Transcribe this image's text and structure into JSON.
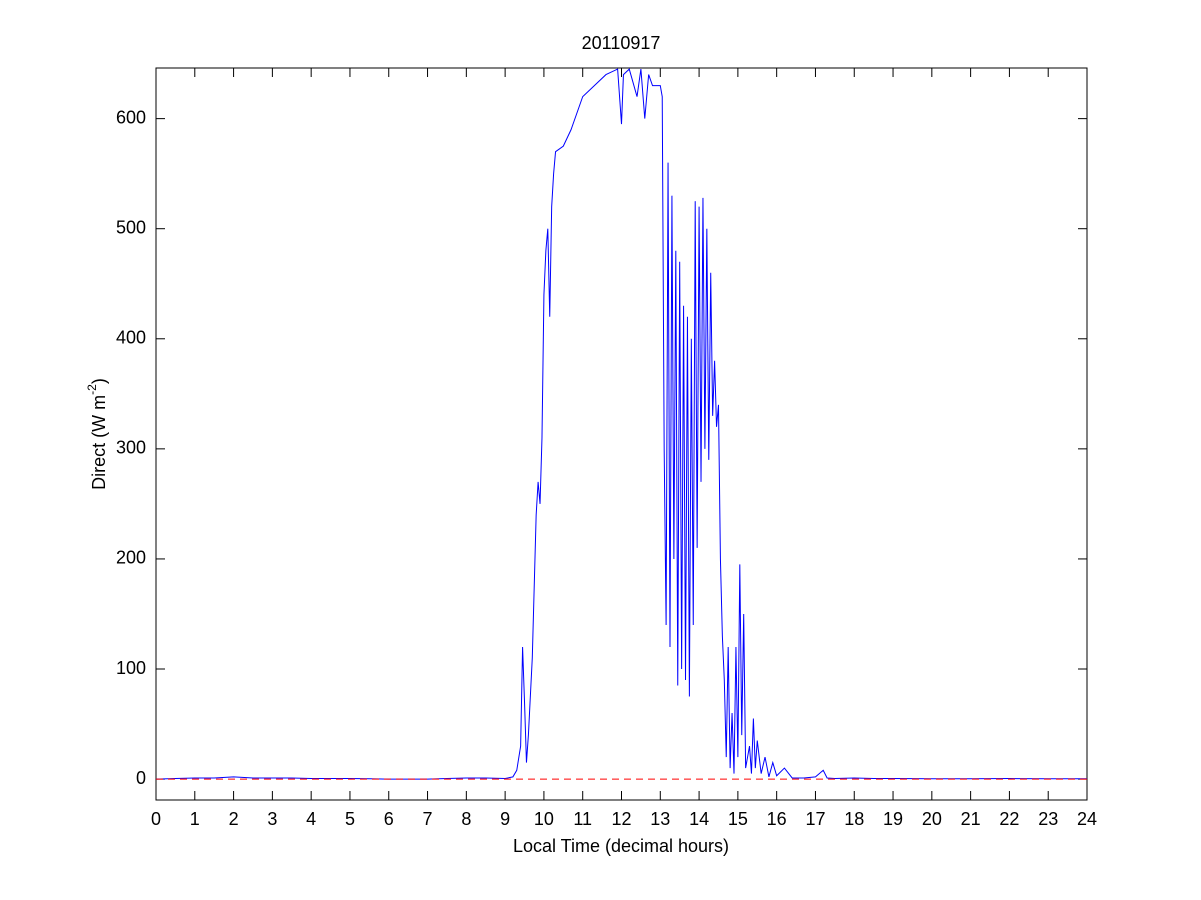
{
  "chart_data": {
    "type": "line",
    "title": "20110917",
    "xlabel": "Local Time (decimal hours)",
    "ylabel": [
      "Direct (W m",
      "-2",
      ")"
    ],
    "xlim": [
      0,
      24
    ],
    "ylim": [
      -19,
      646
    ],
    "xticks": [
      0,
      1,
      2,
      3,
      4,
      5,
      6,
      7,
      8,
      9,
      10,
      11,
      12,
      13,
      14,
      15,
      16,
      17,
      18,
      19,
      20,
      21,
      22,
      23,
      24
    ],
    "yticks": [
      0,
      100,
      200,
      300,
      400,
      500,
      600
    ],
    "series": [
      {
        "color": "#0000ff",
        "linestyle": "solid",
        "x": [
          0,
          0.5,
          1,
          1.5,
          2,
          2.5,
          3,
          3.5,
          4,
          4.5,
          5,
          5.5,
          6,
          7,
          7.5,
          8,
          8.5,
          9,
          9.2,
          9.3,
          9.4,
          9.45,
          9.5,
          9.55,
          9.6,
          9.7,
          9.8,
          9.85,
          9.9,
          9.95,
          10,
          10.05,
          10.1,
          10.15,
          10.2,
          10.25,
          10.3,
          10.5,
          10.7,
          10.9,
          11,
          11.3,
          11.6,
          11.9,
          12,
          12.05,
          12.2,
          12.4,
          12.5,
          12.6,
          12.7,
          12.8,
          13,
          13.05,
          13.1,
          13.15,
          13.2,
          13.25,
          13.3,
          13.35,
          13.4,
          13.45,
          13.5,
          13.55,
          13.6,
          13.65,
          13.7,
          13.75,
          13.8,
          13.85,
          13.9,
          13.95,
          14,
          14.05,
          14.1,
          14.15,
          14.2,
          14.25,
          14.3,
          14.35,
          14.4,
          14.45,
          14.5,
          14.55,
          14.6,
          14.65,
          14.7,
          14.75,
          14.8,
          14.85,
          14.9,
          14.95,
          15,
          15.05,
          15.1,
          15.15,
          15.2,
          15.3,
          15.35,
          15.4,
          15.45,
          15.5,
          15.6,
          15.7,
          15.8,
          15.9,
          16,
          16.2,
          16.4,
          16.7,
          17,
          17.2,
          17.3,
          17.5,
          18,
          18.5,
          19,
          20,
          21,
          22,
          23,
          24
        ],
        "values": [
          0,
          0.5,
          1,
          1,
          2,
          1,
          1,
          1,
          0.5,
          0.5,
          0.5,
          0.3,
          0,
          0,
          0.5,
          1,
          1,
          0.5,
          2,
          8,
          30,
          120,
          70,
          15,
          40,
          110,
          240,
          270,
          250,
          310,
          440,
          480,
          500,
          420,
          520,
          550,
          570,
          575,
          590,
          610,
          620,
          630,
          640,
          645,
          595,
          640,
          645,
          620,
          645,
          600,
          640,
          630,
          630,
          620,
          300,
          140,
          560,
          120,
          530,
          200,
          480,
          85,
          470,
          100,
          430,
          90,
          420,
          75,
          400,
          140,
          525,
          210,
          520,
          270,
          528,
          300,
          500,
          290,
          460,
          330,
          380,
          320,
          340,
          200,
          130,
          90,
          20,
          120,
          10,
          60,
          5,
          120,
          20,
          195,
          40,
          150,
          10,
          30,
          5,
          55,
          10,
          35,
          5,
          20,
          2,
          15,
          3,
          10,
          1,
          1,
          2,
          8,
          1,
          0.5,
          1,
          0.5,
          0.5,
          0.3,
          0.3,
          0.5,
          0.3,
          0.3
        ]
      },
      {
        "color": "#ff0000",
        "linestyle": "dashed",
        "x": [
          0,
          24
        ],
        "values": [
          0,
          0
        ]
      }
    ]
  }
}
